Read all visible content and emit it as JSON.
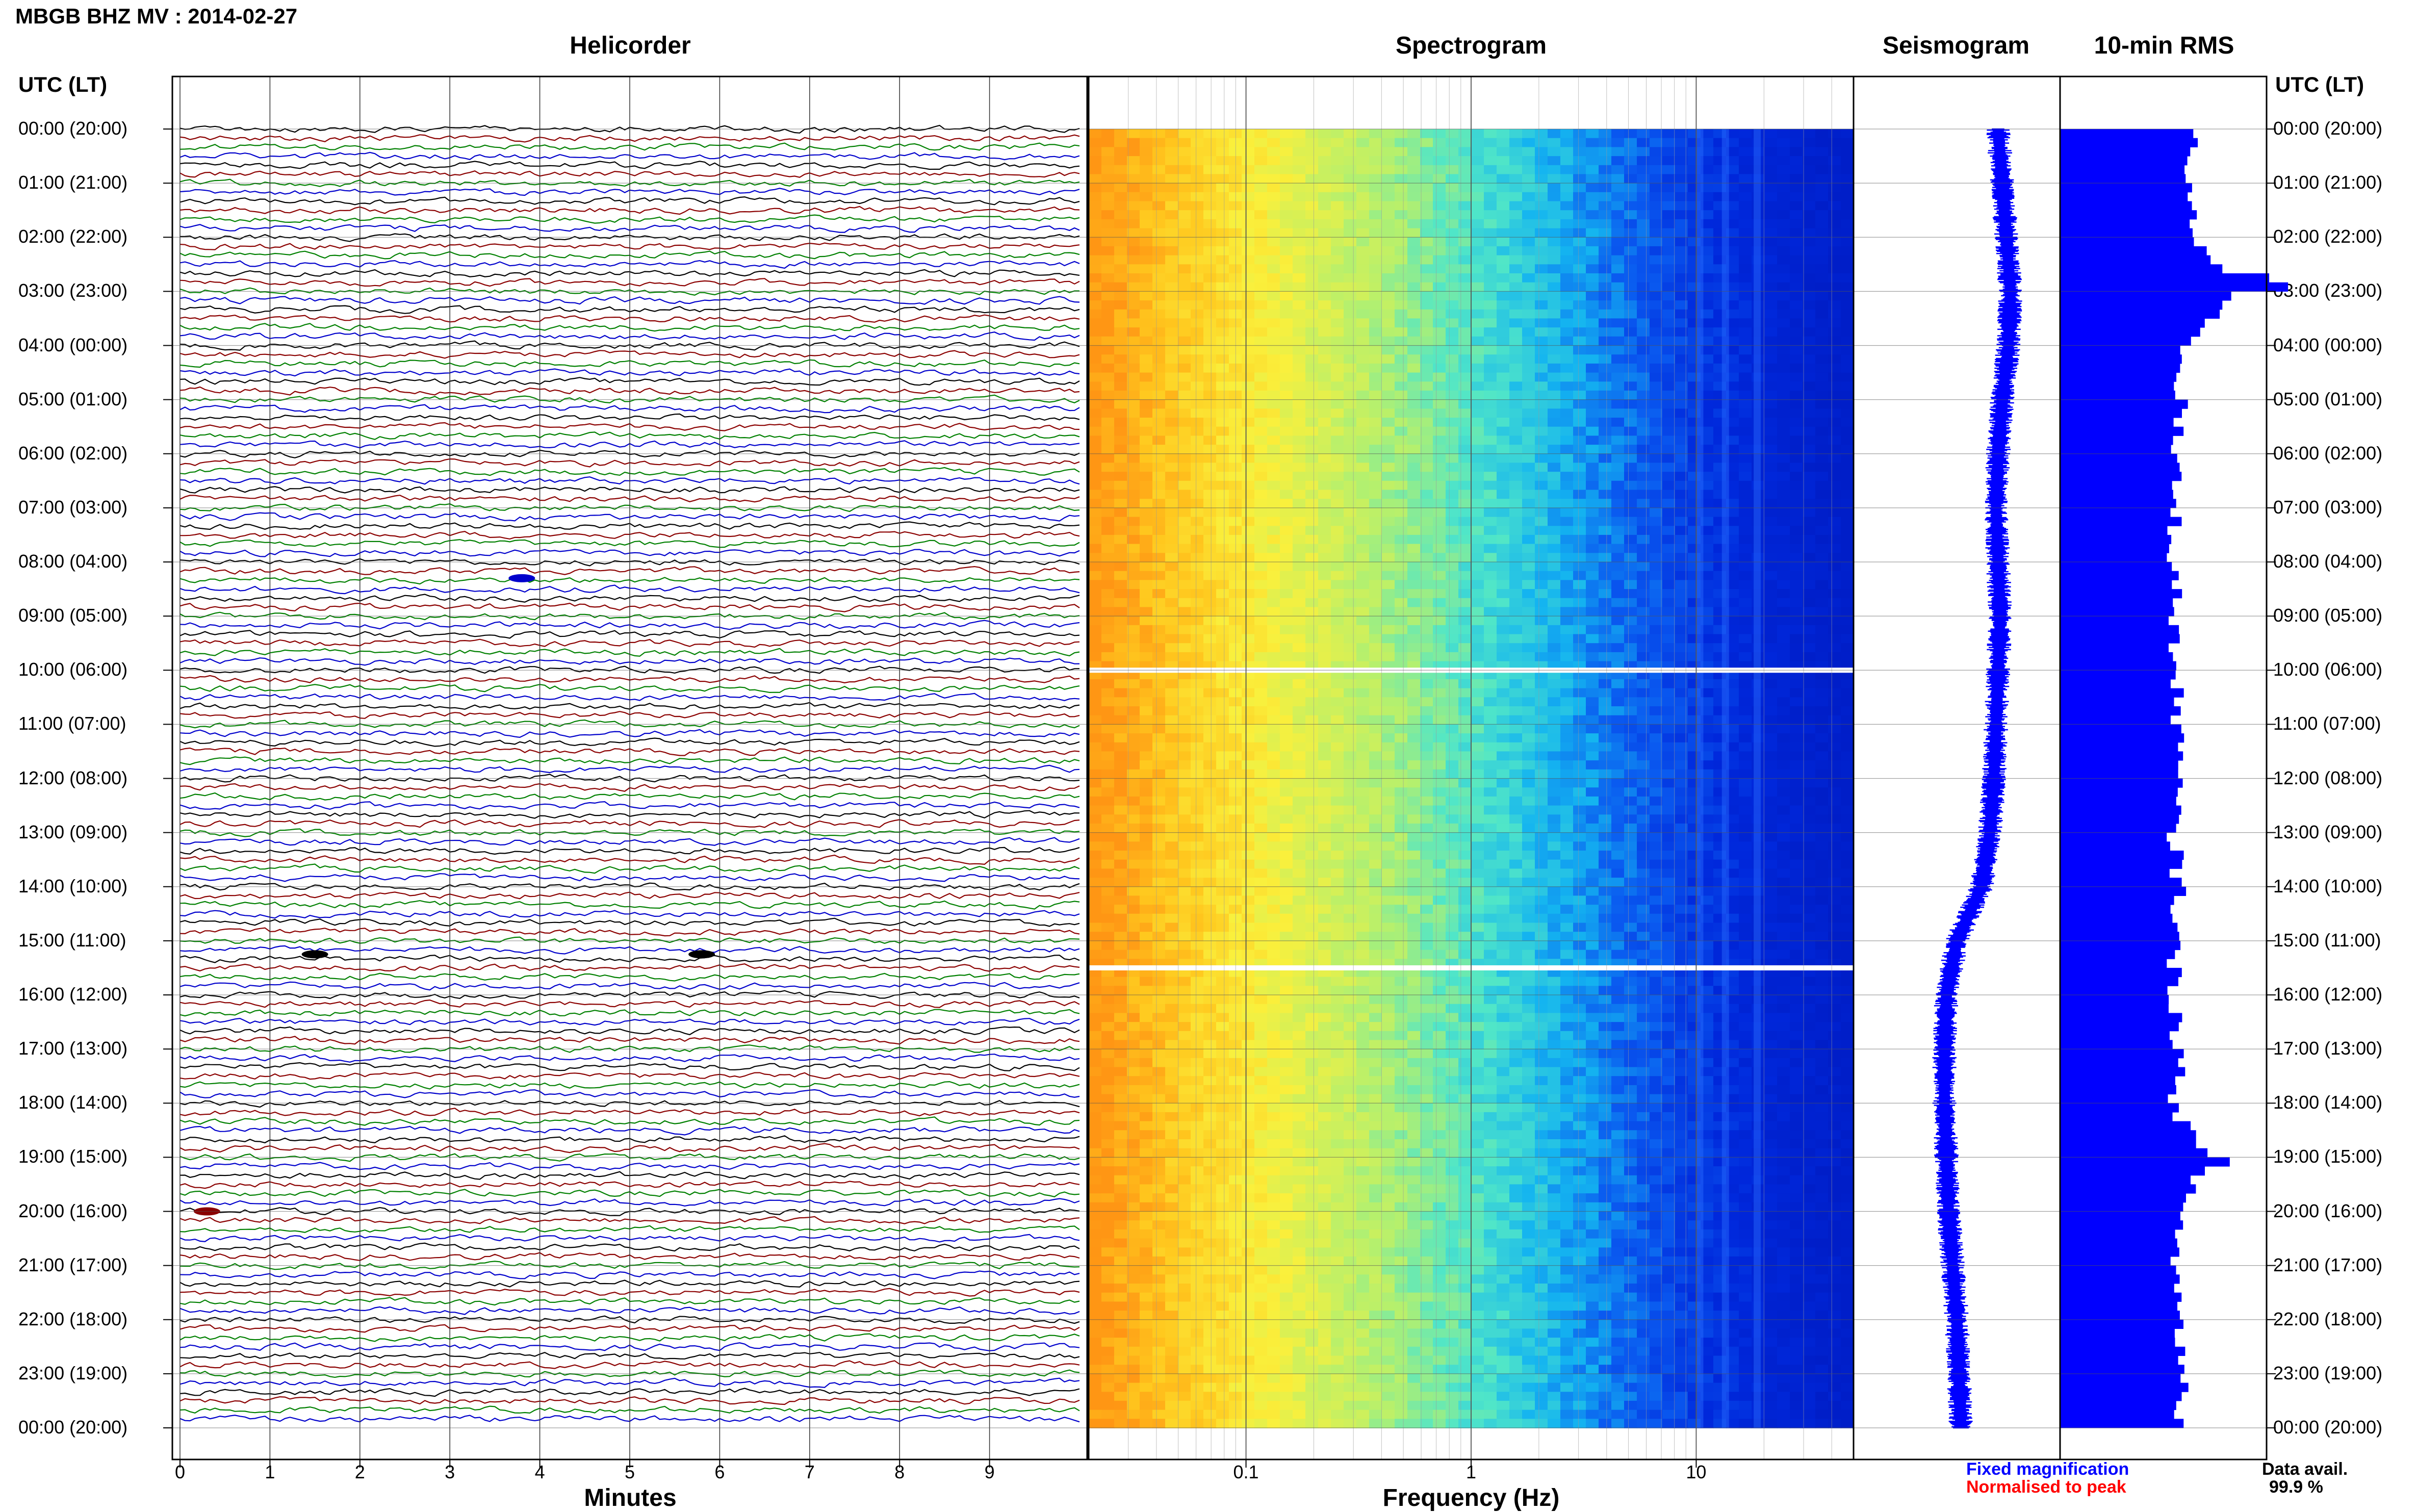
{
  "header": {
    "title": "MBGB BHZ MV : 2014-02-27"
  },
  "panels": {
    "helicorder": "Helicorder",
    "spectrogram": "Spectrogram",
    "seismogram": "Seismogram",
    "rms": "10-min RMS"
  },
  "axis_labels": {
    "utc_left": "UTC (LT)",
    "utc_right": "UTC (LT)",
    "minutes": "Minutes",
    "frequency": "Frequency (Hz)"
  },
  "time_labels": [
    "00:00 (20:00)",
    "01:00 (21:00)",
    "02:00 (22:00)",
    "03:00 (23:00)",
    "04:00 (00:00)",
    "05:00 (01:00)",
    "06:00 (02:00)",
    "07:00 (03:00)",
    "08:00 (04:00)",
    "09:00 (05:00)",
    "10:00 (06:00)",
    "11:00 (07:00)",
    "12:00 (08:00)",
    "13:00 (09:00)",
    "14:00 (10:00)",
    "15:00 (11:00)",
    "16:00 (12:00)",
    "17:00 (13:00)",
    "18:00 (14:00)",
    "19:00 (15:00)",
    "20:00 (16:00)",
    "21:00 (17:00)",
    "22:00 (18:00)",
    "23:00 (19:00)",
    "00:00 (20:00)"
  ],
  "minute_ticks": [
    "0",
    "1",
    "2",
    "3",
    "4",
    "5",
    "6",
    "7",
    "8",
    "9"
  ],
  "frequency_ticks": [
    "0.1",
    "1",
    "10"
  ],
  "legend": {
    "fixed": "Fixed magnification",
    "normalised": "Normalised to peak",
    "fixed_color": "#0000ff",
    "normalised_color": "#ff0000"
  },
  "availability": {
    "label": "Data avail.",
    "value": "99.9 %"
  },
  "colors": {
    "helicorder_lines": [
      "#000000",
      "#8b0000",
      "#008000",
      "#0000cc"
    ],
    "seismogram": "#0000ff",
    "rms": "#0000ff",
    "spectrogram_scale": [
      "#ff9900",
      "#ffff33",
      "#33ffcc",
      "#0099ff",
      "#0033ff"
    ]
  },
  "chart_data": [
    {
      "type": "line",
      "panel": "helicorder",
      "xlabel": "Minutes",
      "x_range": [
        0,
        10
      ],
      "y_range_hours_utc": [
        0,
        24
      ],
      "lines_per_hour": 6,
      "line_count": 144,
      "events_minute_of_line": [
        {
          "hour": 8.3,
          "minute": 3.8,
          "color": "#0000cc"
        },
        {
          "hour": 15.25,
          "minute": 1.5,
          "color": "#000000"
        },
        {
          "hour": 15.25,
          "minute": 5.8,
          "color": "#000000"
        },
        {
          "hour": 20.0,
          "minute": 0.3,
          "color": "#8b0000"
        }
      ]
    },
    {
      "type": "heatmap",
      "panel": "spectrogram",
      "xlabel": "Frequency (Hz)",
      "x_scale": "log",
      "x_range": [
        0.02,
        50
      ],
      "y_range_hours_utc": [
        0,
        24
      ],
      "gaps_hours_utc": [
        10.0,
        15.5
      ]
    },
    {
      "type": "line",
      "panel": "seismogram",
      "y_range_hours_utc": [
        0,
        24
      ],
      "baseline_offset": [
        0.7,
        0.72,
        0.74,
        0.76,
        0.75,
        0.72,
        0.7,
        0.69,
        0.7,
        0.71,
        0.7,
        0.69,
        0.68,
        0.66,
        0.62,
        0.5,
        0.45,
        0.44,
        0.44,
        0.45,
        0.46,
        0.48,
        0.5,
        0.51,
        0.52
      ]
    },
    {
      "type": "bar",
      "panel": "10-min RMS",
      "orientation": "horizontal",
      "y_range_hours_utc": [
        0,
        24
      ],
      "bin_minutes": 10,
      "hourly_relative_rms": [
        0.65,
        0.6,
        0.68,
        0.85,
        0.6,
        0.58,
        0.55,
        0.56,
        0.55,
        0.56,
        0.55,
        0.58,
        0.56,
        0.55,
        0.58,
        0.55,
        0.56,
        0.57,
        0.56,
        0.7,
        0.58,
        0.56,
        0.58,
        0.6,
        0.58
      ]
    }
  ]
}
